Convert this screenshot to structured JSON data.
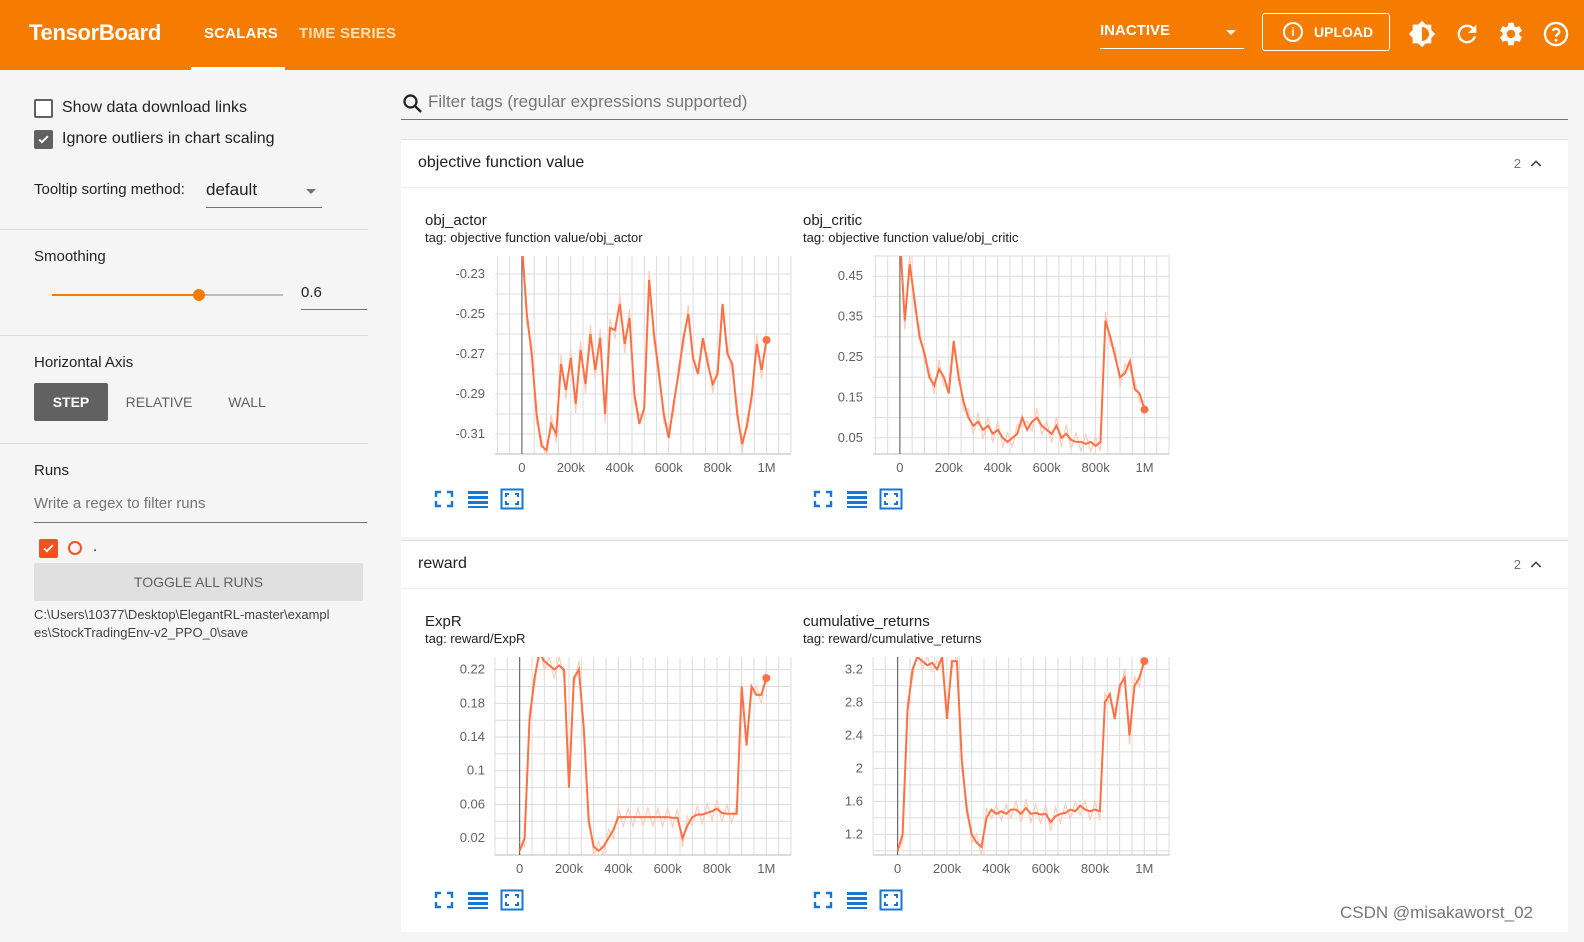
{
  "header": {
    "brand": "TensorBoard",
    "tabs": [
      {
        "label": "SCALARS",
        "active": true
      },
      {
        "label": "TIME SERIES",
        "active": false
      }
    ],
    "run_select": "INACTIVE",
    "upload_label": "UPLOAD",
    "icons": [
      "theme-icon",
      "refresh-icon",
      "settings-icon",
      "help-icon"
    ],
    "colors": {
      "bar": "#f57c00",
      "text": "#ffffff"
    }
  },
  "sidebar": {
    "show_download_links": "Show data download links",
    "ignore_outliers": "Ignore outliers in chart scaling",
    "tooltip_label": "Tooltip sorting method:",
    "tooltip_value": "default",
    "smoothing_label": "Smoothing",
    "smoothing_value": "0.6",
    "smoothing_fraction": 0.6,
    "axis_label": "Horizontal Axis",
    "axis_options": [
      "STEP",
      "RELATIVE",
      "WALL"
    ],
    "runs_label": "Runs",
    "runs_filter_placeholder": "Write a regex to filter runs",
    "run_name": ".",
    "toggle_all": "TOGGLE ALL RUNS",
    "run_path": "C:\\Users\\10377\\Desktop\\ElegantRL-master\\examples\\StockTradingEnv-v2_PPO_0\\save"
  },
  "main": {
    "filter_placeholder": "Filter tags (regular expressions supported)",
    "groups": [
      {
        "title": "objective function value",
        "count": "2"
      },
      {
        "title": "reward",
        "count": "2"
      }
    ]
  },
  "watermark": "CSDN @misakaworst_02",
  "chart_data": [
    {
      "type": "line",
      "title": "obj_actor",
      "tag": "tag: objective function value/obj_actor",
      "xticks": [
        "0",
        "200k",
        "400k",
        "600k",
        "800k",
        "1M"
      ],
      "yticks": [
        "-0.23",
        "-0.25",
        "-0.27",
        "-0.29",
        "-0.31"
      ],
      "ytick_values": [
        -0.23,
        -0.25,
        -0.27,
        -0.29,
        -0.31
      ],
      "xlim": [
        -110000,
        1100000
      ],
      "ylim": [
        -0.32,
        -0.221
      ],
      "series": [
        {
          "color": "#ff7043",
          "x": [
            0,
            20000,
            40000,
            60000,
            80000,
            100000,
            120000,
            140000,
            160000,
            180000,
            200000,
            220000,
            240000,
            260000,
            280000,
            300000,
            320000,
            340000,
            360000,
            380000,
            400000,
            420000,
            440000,
            460000,
            480000,
            500000,
            520000,
            540000,
            560000,
            580000,
            600000,
            620000,
            640000,
            660000,
            680000,
            700000,
            720000,
            740000,
            760000,
            780000,
            800000,
            820000,
            840000,
            860000,
            880000,
            900000,
            920000,
            940000,
            960000,
            980000,
            1000000
          ],
          "y": [
            -0.215,
            -0.25,
            -0.27,
            -0.3,
            -0.316,
            -0.318,
            -0.305,
            -0.31,
            -0.275,
            -0.288,
            -0.272,
            -0.295,
            -0.268,
            -0.285,
            -0.26,
            -0.278,
            -0.262,
            -0.3,
            -0.257,
            -0.258,
            -0.245,
            -0.265,
            -0.252,
            -0.29,
            -0.305,
            -0.297,
            -0.233,
            -0.26,
            -0.28,
            -0.3,
            -0.312,
            -0.295,
            -0.28,
            -0.262,
            -0.25,
            -0.272,
            -0.28,
            -0.262,
            -0.275,
            -0.285,
            -0.28,
            -0.245,
            -0.27,
            -0.275,
            -0.3,
            -0.315,
            -0.306,
            -0.29,
            -0.265,
            -0.278,
            -0.263
          ]
        }
      ]
    },
    {
      "type": "line",
      "title": "obj_critic",
      "tag": "tag: objective function value/obj_critic",
      "xticks": [
        "0",
        "200k",
        "400k",
        "600k",
        "800k",
        "1M"
      ],
      "yticks": [
        "0.45",
        "0.35",
        "0.25",
        "0.15",
        "0.05"
      ],
      "ytick_values": [
        0.45,
        0.35,
        0.25,
        0.15,
        0.05
      ],
      "xlim": [
        -110000,
        1100000
      ],
      "ylim": [
        0.01,
        0.5
      ],
      "series": [
        {
          "color": "#ff7043",
          "x": [
            0,
            20000,
            40000,
            60000,
            80000,
            100000,
            120000,
            140000,
            160000,
            180000,
            200000,
            220000,
            240000,
            260000,
            280000,
            300000,
            320000,
            340000,
            360000,
            380000,
            400000,
            420000,
            440000,
            460000,
            480000,
            500000,
            520000,
            540000,
            560000,
            580000,
            600000,
            620000,
            640000,
            660000,
            680000,
            700000,
            720000,
            740000,
            760000,
            780000,
            800000,
            820000,
            840000,
            860000,
            880000,
            900000,
            920000,
            940000,
            960000,
            980000,
            1000000
          ],
          "y": [
            0.55,
            0.34,
            0.48,
            0.39,
            0.3,
            0.26,
            0.2,
            0.18,
            0.22,
            0.2,
            0.16,
            0.29,
            0.2,
            0.14,
            0.1,
            0.08,
            0.09,
            0.07,
            0.08,
            0.06,
            0.07,
            0.05,
            0.04,
            0.05,
            0.06,
            0.1,
            0.07,
            0.09,
            0.1,
            0.08,
            0.07,
            0.06,
            0.08,
            0.05,
            0.06,
            0.045,
            0.04,
            0.04,
            0.035,
            0.04,
            0.03,
            0.04,
            0.34,
            0.3,
            0.25,
            0.2,
            0.21,
            0.24,
            0.17,
            0.16,
            0.12
          ]
        }
      ]
    },
    {
      "type": "line",
      "title": "ExpR",
      "tag": "tag: reward/ExpR",
      "xticks": [
        "0",
        "200k",
        "400k",
        "600k",
        "800k",
        "1M"
      ],
      "yticks": [
        "0.22",
        "0.18",
        "0.14",
        "0.1",
        "0.06",
        "0.02"
      ],
      "ytick_values": [
        0.22,
        0.18,
        0.14,
        0.1,
        0.06,
        0.02
      ],
      "xlim": [
        -100000,
        1100000
      ],
      "ylim": [
        0.0,
        0.235
      ],
      "series": [
        {
          "color": "#ff7043",
          "x": [
            0,
            20000,
            40000,
            60000,
            80000,
            100000,
            120000,
            140000,
            160000,
            180000,
            200000,
            220000,
            240000,
            260000,
            280000,
            300000,
            320000,
            340000,
            360000,
            380000,
            400000,
            420000,
            440000,
            460000,
            480000,
            500000,
            520000,
            540000,
            560000,
            580000,
            600000,
            620000,
            640000,
            660000,
            680000,
            700000,
            720000,
            740000,
            760000,
            780000,
            800000,
            820000,
            840000,
            860000,
            880000,
            900000,
            920000,
            940000,
            960000,
            980000,
            1000000
          ],
          "y": [
            0.005,
            0.02,
            0.16,
            0.21,
            0.24,
            0.23,
            0.225,
            0.22,
            0.225,
            0.22,
            0.08,
            0.21,
            0.22,
            0.15,
            0.04,
            0.01,
            0.005,
            0.01,
            0.02,
            0.03,
            0.045,
            0.045,
            0.045,
            0.045,
            0.045,
            0.045,
            0.045,
            0.045,
            0.045,
            0.045,
            0.045,
            0.044,
            0.044,
            0.02,
            0.035,
            0.045,
            0.048,
            0.048,
            0.05,
            0.052,
            0.055,
            0.05,
            0.049,
            0.049,
            0.049,
            0.2,
            0.13,
            0.2,
            0.19,
            0.19,
            0.21
          ]
        }
      ]
    },
    {
      "type": "line",
      "title": "cumulative_returns",
      "tag": "tag: reward/cumulative_returns",
      "xticks": [
        "0",
        "200k",
        "400k",
        "600k",
        "800k",
        "1M"
      ],
      "yticks": [
        "3.2",
        "2.8",
        "2.4",
        "2",
        "1.6",
        "1.2"
      ],
      "ytick_values": [
        3.2,
        2.8,
        2.4,
        2.0,
        1.6,
        1.2
      ],
      "xlim": [
        -100000,
        1100000
      ],
      "ylim": [
        0.95,
        3.35
      ],
      "series": [
        {
          "color": "#ff7043",
          "x": [
            0,
            20000,
            40000,
            60000,
            80000,
            100000,
            120000,
            140000,
            160000,
            180000,
            200000,
            220000,
            240000,
            260000,
            280000,
            300000,
            320000,
            340000,
            360000,
            380000,
            400000,
            420000,
            440000,
            460000,
            480000,
            500000,
            520000,
            540000,
            560000,
            580000,
            600000,
            620000,
            640000,
            660000,
            680000,
            700000,
            720000,
            740000,
            760000,
            780000,
            800000,
            820000,
            840000,
            860000,
            880000,
            900000,
            920000,
            940000,
            960000,
            980000,
            1000000
          ],
          "y": [
            1.0,
            1.2,
            2.7,
            3.2,
            3.35,
            3.3,
            3.25,
            3.28,
            3.2,
            3.35,
            2.6,
            3.3,
            3.3,
            2.1,
            1.5,
            1.2,
            1.1,
            1.05,
            1.4,
            1.5,
            1.45,
            1.48,
            1.45,
            1.5,
            1.5,
            1.45,
            1.52,
            1.45,
            1.46,
            1.44,
            1.45,
            1.35,
            1.42,
            1.45,
            1.46,
            1.5,
            1.48,
            1.55,
            1.5,
            1.48,
            1.5,
            1.48,
            2.8,
            2.9,
            2.6,
            3.0,
            3.1,
            2.4,
            3.0,
            3.1,
            3.3
          ]
        }
      ]
    }
  ]
}
